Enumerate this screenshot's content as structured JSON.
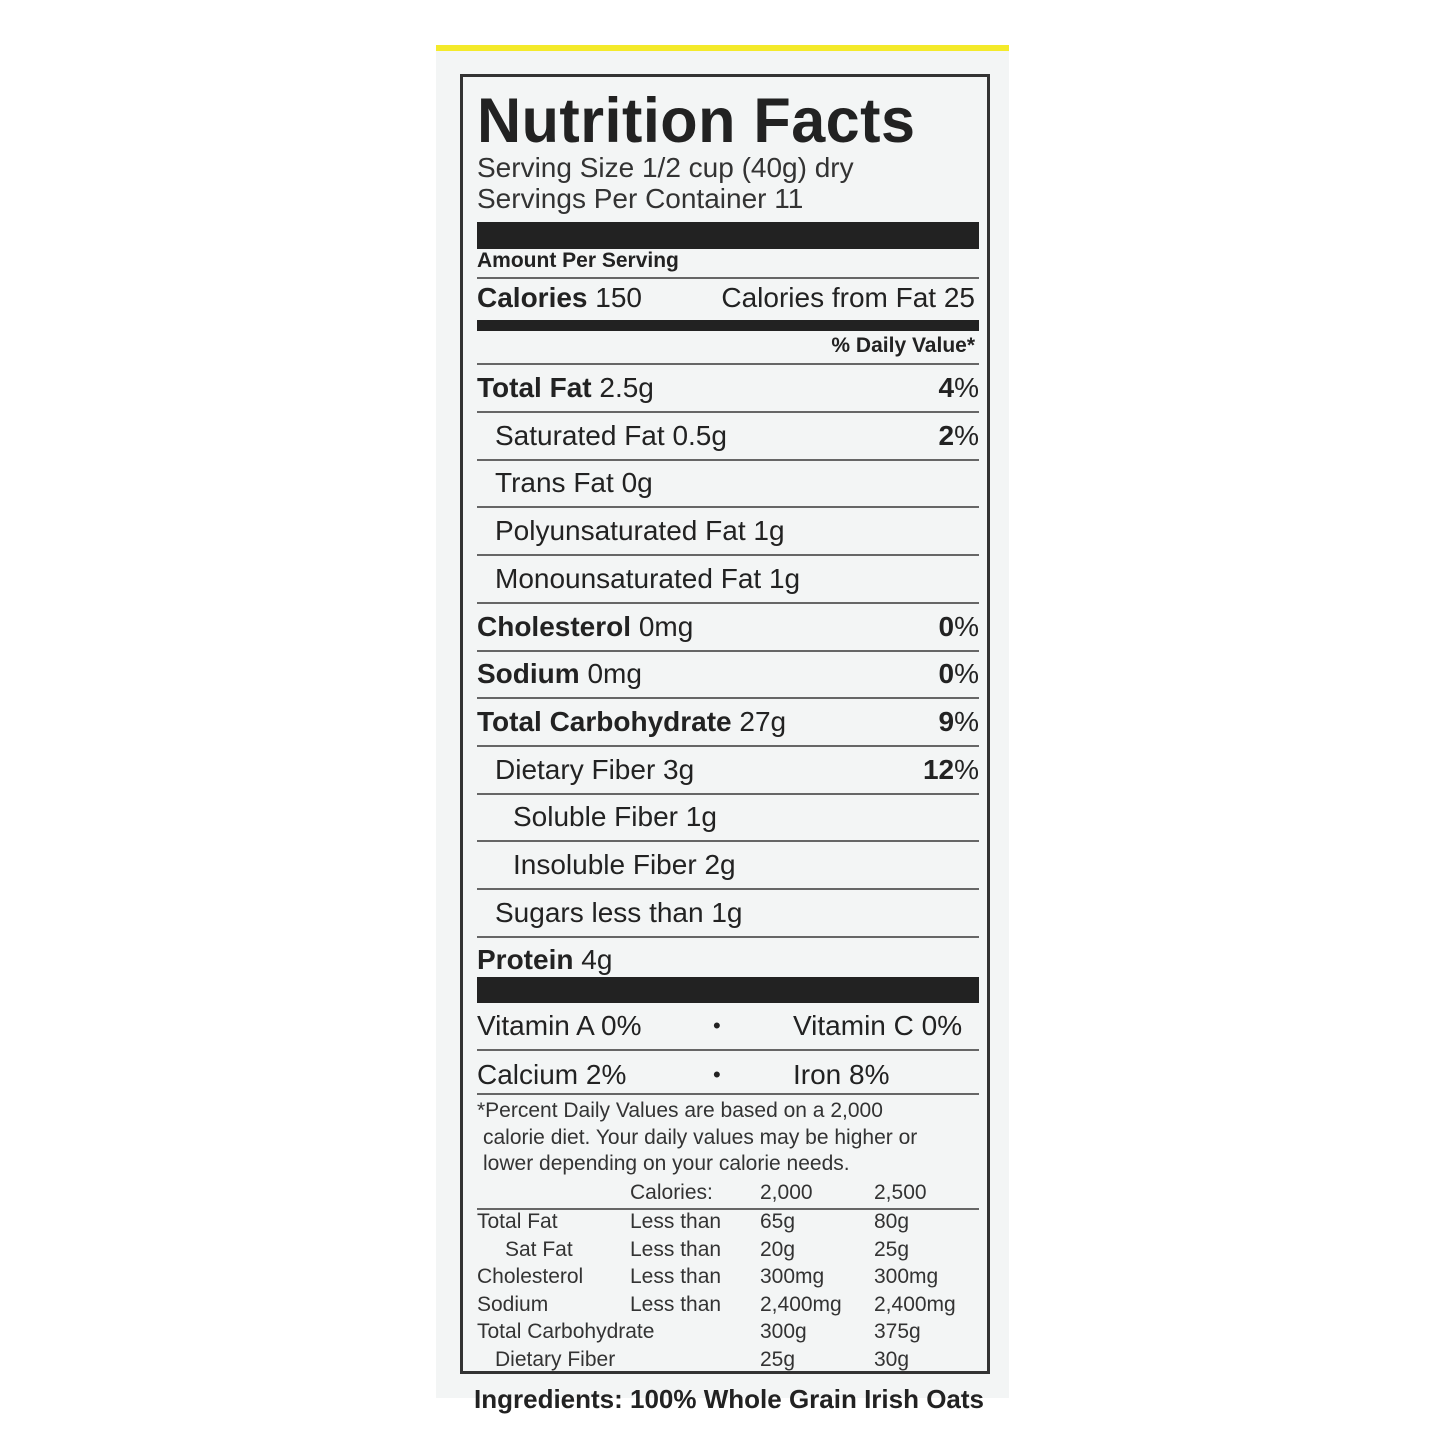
{
  "label": {
    "title": "Nutrition Facts",
    "serving_size": "Serving Size 1/2 cup (40g) dry",
    "servings_per_container": "Servings Per Container 11",
    "amount_per_serving": "Amount Per Serving",
    "calories_label": "Calories",
    "calories_value": "150",
    "calories_from_fat": "Calories from Fat 25",
    "daily_value_header": "% Daily Value*",
    "nutrients": [
      {
        "name": "Total Fat",
        "amount": "2.5g",
        "dv_num": "4",
        "dv_pct": "%"
      },
      {
        "name": "Saturated Fat",
        "amount": "0.5g",
        "dv_num": "2",
        "dv_pct": "%"
      },
      {
        "name": "Trans Fat",
        "amount": "0g"
      },
      {
        "name": "Polyunsaturated Fat",
        "amount": "1g"
      },
      {
        "name": "Monounsaturated Fat",
        "amount": "1g"
      },
      {
        "name": "Cholesterol",
        "amount": "0mg",
        "dv_num": "0",
        "dv_pct": "%"
      },
      {
        "name": "Sodium",
        "amount": "0mg",
        "dv_num": "0",
        "dv_pct": "%"
      },
      {
        "name": "Total Carbohydrate",
        "amount": "27g",
        "dv_num": "9",
        "dv_pct": "%"
      },
      {
        "name": "Dietary Fiber",
        "amount": "3g",
        "dv_num": "12",
        "dv_pct": "%"
      },
      {
        "name": "Soluble Fiber",
        "amount": "1g"
      },
      {
        "name": "Insoluble Fiber",
        "amount": "2g"
      },
      {
        "name": "Sugars less than",
        "amount": "1g"
      },
      {
        "name": "Protein",
        "amount": "4g"
      }
    ],
    "vitamins": [
      {
        "left": "Vitamin A 0%",
        "right": "Vitamin C 0%"
      },
      {
        "left": "Calcium 2%",
        "right": "Iron 8%"
      }
    ],
    "bullet": "•",
    "footnote": [
      "*Percent Daily Values are based on a 2,000",
      "calorie diet. Your daily values may be higher or",
      "lower depending on your calorie needs."
    ],
    "dv_table": {
      "header": [
        "",
        "Calories:",
        "2,000",
        "2,500"
      ],
      "rows": [
        [
          "Total Fat",
          "Less than",
          "65g",
          "80g"
        ],
        [
          "Sat Fat",
          "Less than",
          "20g",
          "25g"
        ],
        [
          "Cholesterol",
          "Less than",
          "300mg",
          "300mg"
        ],
        [
          "Sodium",
          "Less than",
          "2,400mg",
          "2,400mg"
        ],
        [
          "Total Carbohydrate",
          "",
          "300g",
          "375g"
        ],
        [
          "Dietary Fiber",
          "",
          "25g",
          "30g"
        ]
      ]
    },
    "ingredients_partial": "Ingredients: 100% Whole Grain Irish Oats"
  },
  "colors": {
    "accent_stripe": "#f4ea2a",
    "panel": "#f3f5f5",
    "ink": "#222222"
  }
}
